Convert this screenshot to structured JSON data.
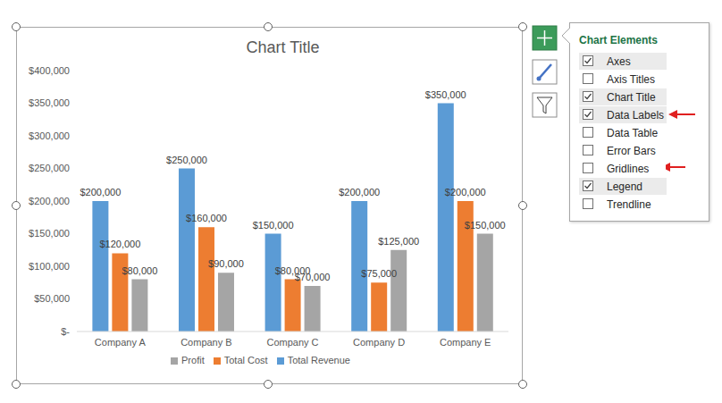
{
  "chart_data": {
    "type": "bar",
    "title": "Chart Title",
    "categories": [
      "Company A",
      "Company B",
      "Company C",
      "Company D",
      "Company E"
    ],
    "series": [
      {
        "name": "Total Revenue",
        "color": "#5b9bd5",
        "values": [
          200000,
          250000,
          150000,
          200000,
          350000
        ],
        "value_labels": [
          "$200,000",
          "$250,000",
          "$150,000",
          "$200,000",
          "$350,000"
        ]
      },
      {
        "name": "Total Cost",
        "color": "#ed7d31",
        "values": [
          120000,
          160000,
          80000,
          75000,
          200000
        ],
        "value_labels": [
          "$120,000",
          "$160,000",
          "$80,000",
          "$75,000",
          "$200,000"
        ]
      },
      {
        "name": "Profit",
        "color": "#a5a5a5",
        "values": [
          80000,
          90000,
          70000,
          125000,
          150000
        ],
        "value_labels": [
          "$80,000",
          "$90,000",
          "$70,000",
          "$125,000",
          "$150,000"
        ]
      }
    ],
    "ylim": [
      0,
      400000
    ],
    "yticks": [
      {
        "value": 0,
        "label": "$-"
      },
      {
        "value": 50000,
        "label": "$50,000"
      },
      {
        "value": 100000,
        "label": "$100,000"
      },
      {
        "value": 150000,
        "label": "$150,000"
      },
      {
        "value": 200000,
        "label": "$200,000"
      },
      {
        "value": 250000,
        "label": "$250,000"
      },
      {
        "value": 300000,
        "label": "$300,000"
      },
      {
        "value": 350000,
        "label": "$350,000"
      },
      {
        "value": 400000,
        "label": "$400,000"
      }
    ],
    "grid": false,
    "data_labels": true,
    "legend": "bottom"
  },
  "chart_elements_panel": {
    "title": "Chart Elements",
    "items": [
      {
        "label": "Axes",
        "checked": true
      },
      {
        "label": "Axis Titles",
        "checked": false
      },
      {
        "label": "Chart Title",
        "checked": true
      },
      {
        "label": "Data Labels",
        "checked": true
      },
      {
        "label": "Data Table",
        "checked": false
      },
      {
        "label": "Error Bars",
        "checked": false
      },
      {
        "label": "Gridlines",
        "checked": false
      },
      {
        "label": "Legend",
        "checked": true
      },
      {
        "label": "Trendline",
        "checked": false
      }
    ]
  }
}
